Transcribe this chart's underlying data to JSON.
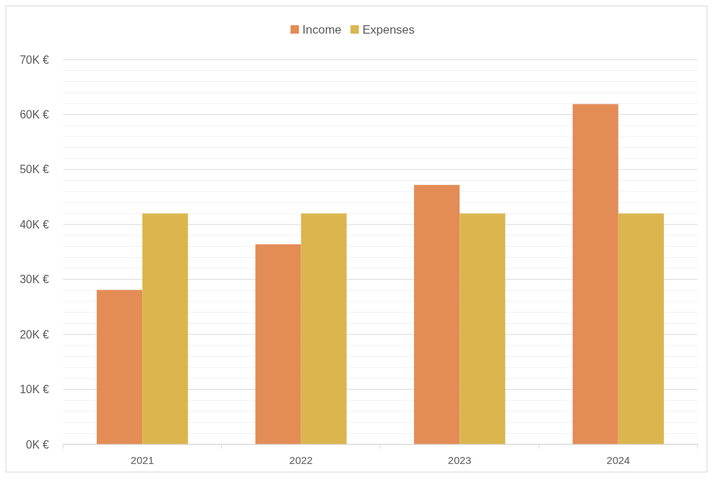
{
  "chart_data": {
    "type": "bar",
    "categories": [
      "2021",
      "2022",
      "2023",
      "2024"
    ],
    "series": [
      {
        "name": "Income",
        "color": "#e38c56",
        "values": [
          28100,
          36400,
          47200,
          61900
        ]
      },
      {
        "name": "Expenses",
        "color": "#dbb64e",
        "values": [
          42000,
          42000,
          42000,
          42000
        ]
      }
    ],
    "ylim": [
      0,
      70000
    ],
    "yticks": [
      {
        "value": 0,
        "label": "0K €"
      },
      {
        "value": 2000,
        "label": null
      },
      {
        "value": 4000,
        "label": null
      },
      {
        "value": 6000,
        "label": null
      },
      {
        "value": 8000,
        "label": null
      },
      {
        "value": 10000,
        "label": "10K €"
      },
      {
        "value": 12000,
        "label": null
      },
      {
        "value": 14000,
        "label": null
      },
      {
        "value": 16000,
        "label": null
      },
      {
        "value": 18000,
        "label": null
      },
      {
        "value": 20000,
        "label": "20K €"
      },
      {
        "value": 22000,
        "label": null
      },
      {
        "value": 24000,
        "label": null
      },
      {
        "value": 26000,
        "label": null
      },
      {
        "value": 28000,
        "label": null
      },
      {
        "value": 30000,
        "label": "30K €"
      },
      {
        "value": 32000,
        "label": null
      },
      {
        "value": 34000,
        "label": null
      },
      {
        "value": 36000,
        "label": null
      },
      {
        "value": 38000,
        "label": null
      },
      {
        "value": 40000,
        "label": "40K €"
      },
      {
        "value": 42000,
        "label": null
      },
      {
        "value": 44000,
        "label": null
      },
      {
        "value": 46000,
        "label": null
      },
      {
        "value": 48000,
        "label": null
      },
      {
        "value": 50000,
        "label": "50K €"
      },
      {
        "value": 52000,
        "label": null
      },
      {
        "value": 54000,
        "label": null
      },
      {
        "value": 56000,
        "label": null
      },
      {
        "value": 58000,
        "label": null
      },
      {
        "value": 60000,
        "label": "60K €"
      },
      {
        "value": 62000,
        "label": null
      },
      {
        "value": 64000,
        "label": null
      },
      {
        "value": 66000,
        "label": null
      },
      {
        "value": 68000,
        "label": null
      },
      {
        "value": 70000,
        "label": "70K €"
      }
    ],
    "grid": "y",
    "legend": "top"
  }
}
